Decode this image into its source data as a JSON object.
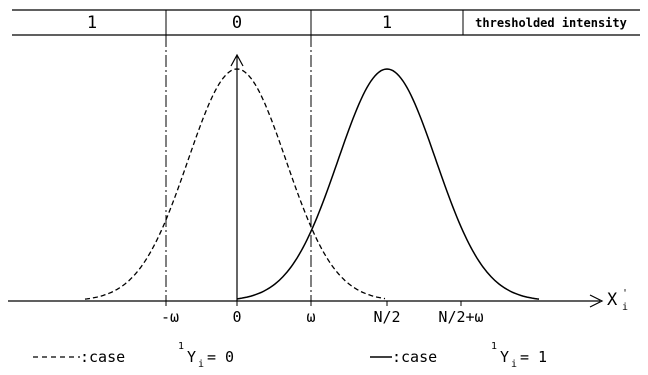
{
  "header": {
    "left_region": "1",
    "center_region": "0",
    "right_region": "1",
    "caption": "thresholded intensity"
  },
  "axis": {
    "x_label": "X",
    "x_subscript": "i",
    "x_prime": "'",
    "ticks": [
      "-ω",
      "0",
      "ω",
      "N/2",
      "N/2+ω"
    ]
  },
  "legend": {
    "dashed": {
      "prefix": ":case",
      "superscript": "1",
      "var": "Y",
      "subscript": "i",
      "value": "= 0"
    },
    "solid": {
      "prefix": ":case",
      "superscript": "1",
      "var": "Y",
      "subscript": "i",
      "value": "= 1"
    }
  },
  "style": {
    "stroke": "#000000",
    "background": "#ffffff"
  }
}
